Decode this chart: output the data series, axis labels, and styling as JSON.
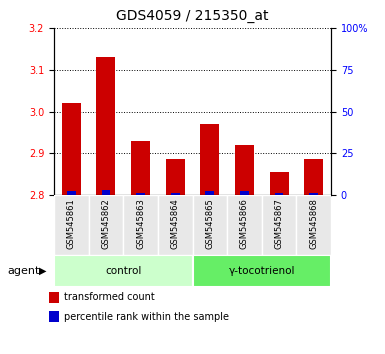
{
  "title": "GDS4059 / 215350_at",
  "samples": [
    "GSM545861",
    "GSM545862",
    "GSM545863",
    "GSM545864",
    "GSM545865",
    "GSM545866",
    "GSM545867",
    "GSM545868"
  ],
  "transformed_counts": [
    3.02,
    3.13,
    2.93,
    2.885,
    2.97,
    2.92,
    2.855,
    2.885
  ],
  "percentile_ranks": [
    2,
    3,
    1,
    1,
    2,
    2,
    1,
    1
  ],
  "ylim_left": [
    2.8,
    3.2
  ],
  "ylim_right": [
    0,
    100
  ],
  "yticks_left": [
    2.8,
    2.9,
    3.0,
    3.1,
    3.2
  ],
  "yticks_right": [
    0,
    25,
    50,
    75,
    100
  ],
  "groups": [
    {
      "label": "control",
      "indices": [
        0,
        1,
        2,
        3
      ],
      "color": "#ccffcc"
    },
    {
      "label": "γ-tocotrienol",
      "indices": [
        4,
        5,
        6,
        7
      ],
      "color": "#66ee66"
    }
  ],
  "bar_color_red": "#cc0000",
  "bar_color_blue": "#0000cc",
  "bar_width": 0.55,
  "blue_bar_width": 0.25,
  "agent_label": "agent",
  "legend_items": [
    {
      "color": "#cc0000",
      "label": "transformed count"
    },
    {
      "color": "#0000cc",
      "label": "percentile rank within the sample"
    }
  ],
  "title_fontsize": 10,
  "tick_fontsize": 7,
  "label_fontsize": 7.5,
  "sample_fontsize": 6,
  "grid_color": "black",
  "background_color": "#e8e8e8",
  "plot_bg": "white"
}
